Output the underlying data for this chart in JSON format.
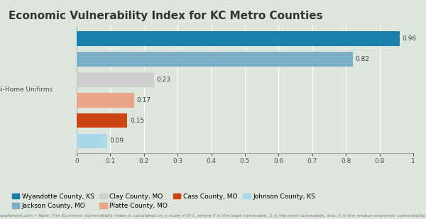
{
  "title": "Economic Vulnerability Index for KC Metro Counties",
  "categories": [
    "Wyandotte County, KS",
    "Jackson County, MO",
    "Clay County, MO",
    "Platte County, MO",
    "Cass County, MO",
    "Johnson County, KS"
  ],
  "values": [
    0.96,
    0.82,
    0.23,
    0.17,
    0.15,
    0.09
  ],
  "colors": [
    "#1b7fac",
    "#7bafc8",
    "#cecece",
    "#e8a58a",
    "#cc4414",
    "#aad8eb"
  ],
  "bar_labels": [
    "0.96",
    "0.82",
    "0.23",
    "0.17",
    "0.15",
    "0.09"
  ],
  "ylabel": "Bi-Home Unifirms",
  "xlim": [
    0,
    1
  ],
  "xticks": [
    0,
    0.1,
    0.2,
    0.3,
    0.4,
    0.5,
    0.6,
    0.7,
    0.8,
    0.9,
    1
  ],
  "footnote": "epbfonetli.com • Note: The Economic Vulnerability Index is calculated on a scale of 0-1, where 0 is the least vulnerable, 1 is the most vulnerable, and .5 is the median economic vulnerability.",
  "background_color": "#dde5dd",
  "bar_height": 0.72,
  "title_fontsize": 11,
  "axis_fontsize": 6.5,
  "label_fontsize": 6.5,
  "legend_fontsize": 6.5,
  "ylabel_fontsize": 6.5,
  "footnote_fontsize": 4.5,
  "legend_row1": [
    "Wyandotte County, KS",
    "Jackson County, MO",
    "Clay County, MO",
    "Platte County, MO"
  ],
  "legend_row2": [
    "Cass County, MO",
    "Johnson County, KS"
  ],
  "legend_colors_row1": [
    "#1b7fac",
    "#7bafc8",
    "#cecece",
    "#e8a58a"
  ],
  "legend_colors_row2": [
    "#cc4414",
    "#aad8eb"
  ]
}
